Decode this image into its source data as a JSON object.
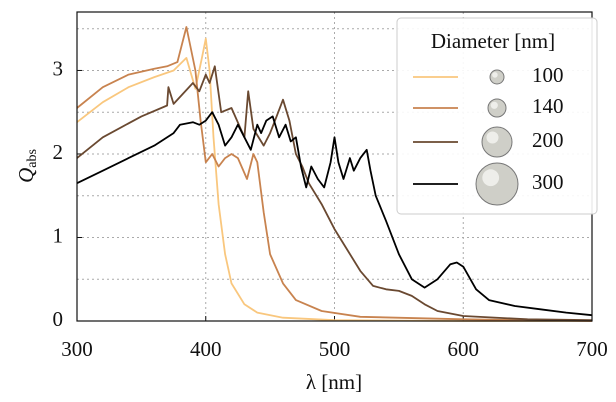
{
  "chart_data": {
    "type": "line",
    "xlabel": "λ [nm]",
    "ylabel": "Q",
    "ylabel_sub": "abs",
    "legend_title": "Diameter [nm]",
    "legend": "upper right",
    "grid": true,
    "xlim": [
      300,
      700
    ],
    "xticks": [
      300,
      400,
      500,
      600,
      700
    ],
    "ylim": [
      0,
      3.7
    ],
    "yticks": [
      0,
      1,
      2,
      3
    ],
    "y_minor_grid": [
      0.5,
      1.5,
      2.5,
      3.5
    ],
    "series": [
      {
        "name": "100",
        "color": "#f9c77e",
        "x": [
          300,
          320,
          340,
          360,
          375,
          385,
          392,
          397,
          400,
          403,
          406,
          410,
          415,
          420,
          430,
          440,
          460,
          500,
          600,
          700
        ],
        "values": [
          2.38,
          2.62,
          2.8,
          2.92,
          3.0,
          3.15,
          2.78,
          3.15,
          3.38,
          3.0,
          2.2,
          1.4,
          0.8,
          0.45,
          0.2,
          0.1,
          0.04,
          0.01,
          0,
          0
        ]
      },
      {
        "name": "140",
        "color": "#c8834f",
        "x": [
          300,
          320,
          340,
          360,
          370,
          378,
          385,
          392,
          396,
          400,
          405,
          410,
          415,
          420,
          425,
          432,
          437,
          440,
          445,
          450,
          460,
          470,
          490,
          520,
          600,
          700
        ],
        "values": [
          2.55,
          2.8,
          2.95,
          3.02,
          3.05,
          3.1,
          3.52,
          3.0,
          2.4,
          1.9,
          2.0,
          1.85,
          1.95,
          2.0,
          1.95,
          1.7,
          2.0,
          1.9,
          1.3,
          0.8,
          0.45,
          0.25,
          0.12,
          0.05,
          0.02,
          0
        ]
      },
      {
        "name": "200",
        "color": "#6a4931",
        "x": [
          300,
          320,
          350,
          370,
          371,
          375,
          390,
          395,
          400,
          403,
          407,
          412,
          420,
          430,
          433,
          437,
          445,
          450,
          455,
          460,
          465,
          470,
          475,
          480,
          490,
          500,
          510,
          520,
          530,
          540,
          550,
          560,
          570,
          580,
          600,
          650,
          700
        ],
        "values": [
          1.95,
          2.2,
          2.45,
          2.58,
          2.8,
          2.6,
          2.85,
          2.75,
          2.95,
          2.85,
          3.05,
          2.5,
          2.55,
          2.2,
          2.75,
          2.3,
          2.1,
          2.25,
          2.45,
          2.65,
          2.4,
          2.0,
          1.85,
          1.65,
          1.4,
          1.1,
          0.85,
          0.6,
          0.42,
          0.38,
          0.36,
          0.3,
          0.2,
          0.12,
          0.06,
          0.02,
          0.01
        ]
      },
      {
        "name": "300",
        "color": "#000000",
        "x": [
          300,
          320,
          340,
          360,
          375,
          380,
          390,
          395,
          400,
          405,
          410,
          415,
          420,
          425,
          430,
          435,
          440,
          443,
          447,
          452,
          457,
          462,
          466,
          470,
          474,
          478,
          482,
          487,
          492,
          497,
          500,
          503,
          507,
          512,
          515,
          520,
          525,
          528,
          532,
          540,
          550,
          560,
          570,
          580,
          590,
          595,
          600,
          610,
          620,
          640,
          660,
          680,
          700
        ],
        "values": [
          1.65,
          1.8,
          1.95,
          2.1,
          2.25,
          2.35,
          2.38,
          2.35,
          2.4,
          2.5,
          2.35,
          2.1,
          2.2,
          2.35,
          2.2,
          2.05,
          2.35,
          2.25,
          2.4,
          2.45,
          2.2,
          2.35,
          2.15,
          2.2,
          1.85,
          1.6,
          1.85,
          1.7,
          1.6,
          1.9,
          2.2,
          1.9,
          1.7,
          1.95,
          1.8,
          1.95,
          2.05,
          1.8,
          1.5,
          1.2,
          0.8,
          0.5,
          0.4,
          0.5,
          0.68,
          0.7,
          0.65,
          0.38,
          0.25,
          0.18,
          0.14,
          0.1,
          0.07
        ]
      }
    ]
  }
}
